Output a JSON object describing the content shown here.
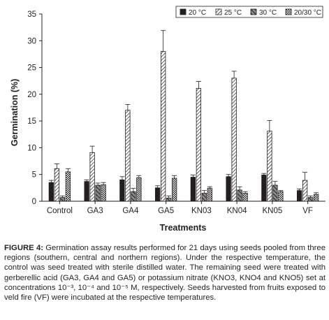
{
  "chart_data": {
    "type": "bar",
    "title": "",
    "xlabel": "Treatments",
    "ylabel": "Germination (%)",
    "ylim": [
      0,
      35
    ],
    "yticks": [
      0,
      5,
      10,
      15,
      20,
      25,
      30,
      35
    ],
    "grid": false,
    "legend_position": "top-right",
    "categories": [
      "Control",
      "GA3",
      "GA4",
      "GA5",
      "KN03",
      "KN04",
      "KN05",
      "VF"
    ],
    "series": [
      {
        "name": "20 °C",
        "pattern": "solid",
        "values": [
          3.5,
          3.7,
          4.0,
          2.5,
          4.5,
          4.6,
          4.9,
          2.0
        ],
        "errors": [
          0.4,
          0.3,
          0.6,
          0.4,
          0.4,
          0.4,
          0.3,
          0.3
        ]
      },
      {
        "name": "25 °C",
        "pattern": "diagonal",
        "values": [
          6.1,
          9.1,
          17.0,
          28.0,
          21.1,
          23.0,
          13.1,
          3.9
        ],
        "errors": [
          0.9,
          1.2,
          1.1,
          3.9,
          1.3,
          1.3,
          2.0,
          1.5
        ]
      },
      {
        "name": "30 °C",
        "pattern": "cross-diagonal",
        "values": [
          0.7,
          3.0,
          1.8,
          0.6,
          1.5,
          2.1,
          3.0,
          0.7
        ],
        "errors": [
          0.3,
          0.4,
          0.6,
          0.4,
          0.5,
          0.6,
          0.7,
          0.3
        ]
      },
      {
        "name": "20/30 °C",
        "pattern": "checker",
        "values": [
          5.5,
          3.1,
          4.4,
          4.3,
          2.4,
          1.5,
          1.8,
          1.3
        ],
        "errors": [
          0.6,
          0.4,
          0.4,
          0.5,
          0.3,
          0.3,
          0.2,
          0.3
        ]
      }
    ]
  },
  "caption": {
    "label": "FIGURE 4:",
    "text": " Germination assay results performed for 21 days using seeds pooled from three regions (southern, central and northern regions). Under the respective temperature, the control was seed treated with sterile distilled water. The remaining seed were treated with gerberellic acid (GA3, GA4 and GA5) or potassium nitrate (KNO3, KNO4 and KNO5) set at concentrations 10⁻³, 10⁻⁴ and 10⁻⁵ M, respectively. Seeds harvested from fruits exposed to veld fire (VF) were incubated at the respective temperatures."
  },
  "colors": {
    "ink": "#231f20",
    "bar_fill": "#ffffff"
  }
}
